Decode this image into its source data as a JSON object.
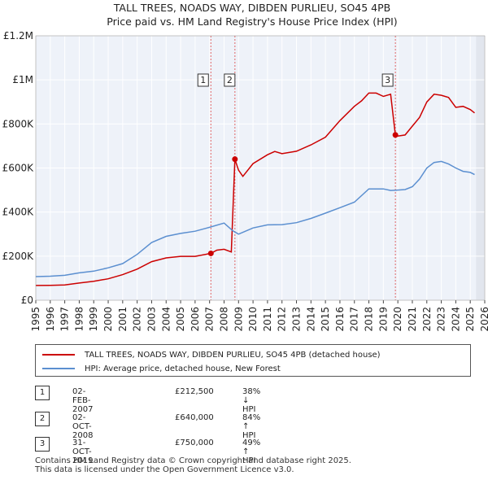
{
  "chart_data": {
    "type": "line",
    "title": "TALL TREES, NOADS WAY, DIBDEN PURLIEU, SO45 4PB",
    "subtitle": "Price paid vs. HM Land Registry's House Price Index (HPI)",
    "ylim": [
      0,
      1200000
    ],
    "xlim": [
      1995,
      2026
    ],
    "yticks": [
      {
        "value": 0,
        "label": "£0"
      },
      {
        "value": 200000,
        "label": "£200K"
      },
      {
        "value": 400000,
        "label": "£400K"
      },
      {
        "value": 600000,
        "label": "£600K"
      },
      {
        "value": 800000,
        "label": "£800K"
      },
      {
        "value": 1000000,
        "label": "£1M"
      },
      {
        "value": 1200000,
        "label": "£1.2M"
      }
    ],
    "xticks": [
      "1995",
      "1996",
      "1997",
      "1998",
      "1999",
      "2000",
      "2001",
      "2002",
      "2003",
      "2004",
      "2005",
      "2006",
      "2007",
      "2008",
      "2009",
      "2010",
      "2011",
      "2012",
      "2013",
      "2014",
      "2015",
      "2016",
      "2017",
      "2018",
      "2019",
      "2020",
      "2021",
      "2022",
      "2023",
      "2024",
      "2025",
      "2026"
    ],
    "series": [
      {
        "name": "TALL TREES, NOADS WAY, DIBDEN PURLIEU, SO45 4PB (detached house)",
        "color": "#cc0000",
        "points": [
          [
            1995.0,
            67000
          ],
          [
            1996.0,
            67500
          ],
          [
            1997.0,
            69500
          ],
          [
            1998.0,
            78000
          ],
          [
            1999.0,
            86000
          ],
          [
            2000.0,
            97000
          ],
          [
            2001.0,
            116000
          ],
          [
            2002.0,
            141000
          ],
          [
            2003.0,
            175000
          ],
          [
            2004.0,
            192000
          ],
          [
            2005.0,
            199000
          ],
          [
            2006.0,
            199000
          ],
          [
            2007.09,
            212500
          ],
          [
            2007.5,
            227000
          ],
          [
            2008.0,
            231000
          ],
          [
            2008.5,
            219000
          ],
          [
            2008.75,
            640000
          ],
          [
            2009.0,
            590000
          ],
          [
            2009.3,
            562000
          ],
          [
            2010.0,
            620000
          ],
          [
            2011.0,
            660000
          ],
          [
            2011.5,
            675000
          ],
          [
            2012.0,
            665000
          ],
          [
            2013.0,
            676000
          ],
          [
            2014.0,
            705000
          ],
          [
            2015.0,
            740000
          ],
          [
            2016.0,
            815000
          ],
          [
            2017.0,
            880000
          ],
          [
            2017.5,
            905000
          ],
          [
            2018.0,
            940000
          ],
          [
            2018.5,
            940000
          ],
          [
            2019.0,
            925000
          ],
          [
            2019.5,
            935000
          ],
          [
            2019.83,
            750000
          ],
          [
            2020.0,
            745000
          ],
          [
            2020.5,
            750000
          ],
          [
            2021.0,
            790000
          ],
          [
            2021.5,
            830000
          ],
          [
            2022.0,
            900000
          ],
          [
            2022.5,
            935000
          ],
          [
            2023.0,
            930000
          ],
          [
            2023.5,
            920000
          ],
          [
            2024.0,
            875000
          ],
          [
            2024.5,
            880000
          ],
          [
            2025.0,
            865000
          ],
          [
            2025.3,
            850000
          ]
        ]
      },
      {
        "name": "HPI: Average price, detached house, New Forest",
        "color": "#5b8fd0",
        "points": [
          [
            1995.0,
            107000
          ],
          [
            1996.0,
            109000
          ],
          [
            1997.0,
            113000
          ],
          [
            1998.0,
            124000
          ],
          [
            1999.0,
            132000
          ],
          [
            2000.0,
            147000
          ],
          [
            2001.0,
            166000
          ],
          [
            2002.0,
            208000
          ],
          [
            2003.0,
            262000
          ],
          [
            2004.0,
            290000
          ],
          [
            2005.0,
            303000
          ],
          [
            2006.0,
            313000
          ],
          [
            2007.0,
            331000
          ],
          [
            2008.0,
            350000
          ],
          [
            2008.6,
            315000
          ],
          [
            2009.0,
            300000
          ],
          [
            2010.0,
            328000
          ],
          [
            2011.0,
            342000
          ],
          [
            2012.0,
            343000
          ],
          [
            2013.0,
            352000
          ],
          [
            2014.0,
            371000
          ],
          [
            2015.0,
            395000
          ],
          [
            2016.0,
            420000
          ],
          [
            2017.0,
            445000
          ],
          [
            2018.0,
            505000
          ],
          [
            2019.0,
            505000
          ],
          [
            2019.5,
            498000
          ],
          [
            2020.0,
            500000
          ],
          [
            2020.5,
            502000
          ],
          [
            2021.0,
            515000
          ],
          [
            2021.5,
            550000
          ],
          [
            2022.0,
            600000
          ],
          [
            2022.5,
            625000
          ],
          [
            2023.0,
            630000
          ],
          [
            2023.5,
            618000
          ],
          [
            2024.0,
            600000
          ],
          [
            2024.5,
            585000
          ],
          [
            2025.0,
            580000
          ],
          [
            2025.3,
            570000
          ]
        ]
      }
    ],
    "sale_markers": [
      {
        "label": "1",
        "x": 2007.09,
        "value": 212500
      },
      {
        "label": "2",
        "x": 2008.75,
        "value": 640000
      },
      {
        "label": "3",
        "x": 2019.83,
        "value": 750000
      }
    ],
    "shaded_region": {
      "from": 2025.4,
      "to": 2026.0
    }
  },
  "legend": {
    "property_label": "TALL TREES, NOADS WAY, DIBDEN PURLIEU, SO45 4PB (detached house)",
    "hpi_label": "HPI: Average price, detached house, New Forest",
    "property_color": "#cc0000",
    "hpi_color": "#5b8fd0"
  },
  "sales": [
    {
      "num": "1",
      "date": "02-FEB-2007",
      "price": "£212,500",
      "hpi": "38% ↓ HPI"
    },
    {
      "num": "2",
      "date": "02-OCT-2008",
      "price": "£640,000",
      "hpi": "84% ↑ HPI"
    },
    {
      "num": "3",
      "date": "31-OCT-2019",
      "price": "£750,000",
      "hpi": "49% ↑ HPI"
    }
  ],
  "footer": {
    "line1": "Contains HM Land Registry data © Crown copyright and database right 2025.",
    "line2": "This data is licensed under the Open Government Licence v3.0."
  }
}
